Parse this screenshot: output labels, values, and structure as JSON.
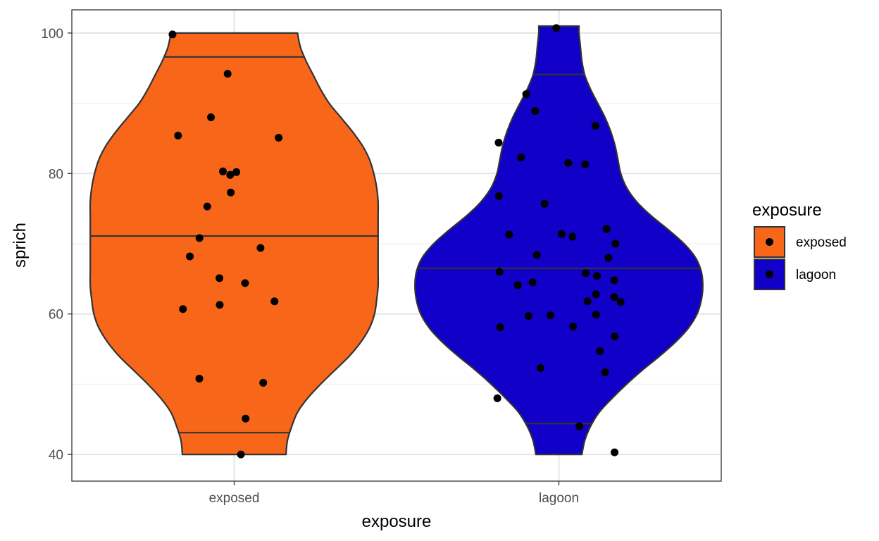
{
  "chart_data": {
    "type": "violin",
    "xlabel": "exposure",
    "ylabel": "sprich",
    "categories": [
      "exposed",
      "lagoon"
    ],
    "ylim": [
      36.2,
      103.3
    ],
    "yticks": [
      40,
      60,
      80,
      100
    ],
    "grid": true,
    "colors": {
      "exposed": "#F8661A",
      "lagoon": "#1000C8"
    },
    "legend": {
      "title": "exposure",
      "position": "right",
      "entries": [
        {
          "label": "exposed",
          "color": "#F8661A"
        },
        {
          "label": "lagoon",
          "color": "#1000C8"
        }
      ]
    },
    "violins": [
      {
        "category": "exposed",
        "range": [
          40,
          100
        ],
        "quantiles": [
          43.1,
          71.1,
          96.6
        ],
        "density_profile": [
          [
            40,
            0.36
          ],
          [
            42,
            0.37
          ],
          [
            44,
            0.4
          ],
          [
            46,
            0.44
          ],
          [
            48,
            0.51
          ],
          [
            50,
            0.6
          ],
          [
            52,
            0.7
          ],
          [
            54,
            0.8
          ],
          [
            56,
            0.88
          ],
          [
            58,
            0.94
          ],
          [
            60,
            0.975
          ],
          [
            62,
            0.99
          ],
          [
            64,
            1.0
          ],
          [
            66,
            1.0
          ],
          [
            68,
            1.0
          ],
          [
            70,
            1.0
          ],
          [
            72,
            1.0
          ],
          [
            74,
            1.0
          ],
          [
            76,
            1.0
          ],
          [
            78,
            0.99
          ],
          [
            80,
            0.97
          ],
          [
            82,
            0.94
          ],
          [
            84,
            0.89
          ],
          [
            86,
            0.82
          ],
          [
            88,
            0.74
          ],
          [
            90,
            0.66
          ],
          [
            92,
            0.6
          ],
          [
            94,
            0.55
          ],
          [
            96,
            0.5
          ],
          [
            98,
            0.46
          ],
          [
            100,
            0.44
          ]
        ],
        "points": [
          99.8,
          94.2,
          88.0,
          85.4,
          85.1,
          80.3,
          80.2,
          79.8,
          77.3,
          75.3,
          70.8,
          69.4,
          68.2,
          65.1,
          64.4,
          61.8,
          61.3,
          60.7,
          50.8,
          50.2,
          45.1,
          40.0
        ]
      },
      {
        "category": "lagoon",
        "range": [
          40,
          101
        ],
        "quantiles": [
          44.4,
          66.5,
          94.1
        ],
        "density_profile": [
          [
            40,
            0.16
          ],
          [
            42,
            0.18
          ],
          [
            44,
            0.22
          ],
          [
            46,
            0.28
          ],
          [
            48,
            0.37
          ],
          [
            50,
            0.47
          ],
          [
            52,
            0.58
          ],
          [
            54,
            0.7
          ],
          [
            56,
            0.81
          ],
          [
            58,
            0.9
          ],
          [
            60,
            0.96
          ],
          [
            62,
            0.99
          ],
          [
            64,
            1.0
          ],
          [
            66,
            0.99
          ],
          [
            68,
            0.95
          ],
          [
            70,
            0.87
          ],
          [
            72,
            0.76
          ],
          [
            74,
            0.64
          ],
          [
            76,
            0.54
          ],
          [
            78,
            0.47
          ],
          [
            80,
            0.43
          ],
          [
            82,
            0.41
          ],
          [
            84,
            0.39
          ],
          [
            86,
            0.36
          ],
          [
            88,
            0.32
          ],
          [
            90,
            0.27
          ],
          [
            92,
            0.22
          ],
          [
            94,
            0.18
          ],
          [
            96,
            0.16
          ],
          [
            98,
            0.15
          ],
          [
            100,
            0.14
          ],
          [
            101,
            0.14
          ]
        ],
        "points": [
          100.7,
          91.3,
          88.9,
          86.8,
          84.4,
          82.3,
          81.5,
          81.3,
          76.8,
          75.7,
          72.1,
          71.4,
          71.3,
          71.0,
          70.0,
          68.4,
          68.0,
          66.0,
          65.8,
          65.4,
          64.8,
          64.5,
          64.1,
          62.8,
          62.4,
          61.8,
          61.7,
          59.9,
          59.8,
          59.7,
          58.2,
          58.1,
          56.8,
          54.7,
          52.3,
          51.7,
          48.0,
          44.0,
          40.3
        ]
      }
    ]
  }
}
